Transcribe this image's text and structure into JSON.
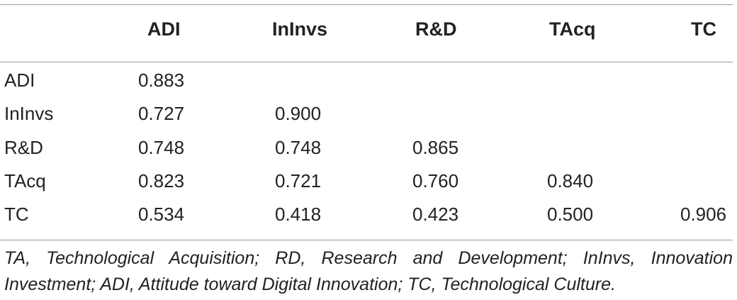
{
  "table": {
    "columns": [
      "ADI",
      "InInvs",
      "R&D",
      "TAcq",
      "TC"
    ],
    "rows": [
      {
        "label": "ADI",
        "values": [
          "0.883",
          "",
          "",
          "",
          ""
        ]
      },
      {
        "label": "InInvs",
        "values": [
          "0.727",
          "0.900",
          "",
          "",
          ""
        ]
      },
      {
        "label": "R&D",
        "values": [
          "0.748",
          "0.748",
          "0.865",
          "",
          ""
        ]
      },
      {
        "label": "TAcq",
        "values": [
          "0.823",
          "0.721",
          "0.760",
          "0.840",
          ""
        ]
      },
      {
        "label": "TC",
        "values": [
          "0.534",
          "0.418",
          "0.423",
          "0.500",
          "0.906"
        ]
      }
    ]
  },
  "footnote": "TA, Technological Acquisition; RD, Research and Development; InInvs, Innovation Investment; ADI, Attitude toward Digital Innovation; TC, Technological Culture."
}
